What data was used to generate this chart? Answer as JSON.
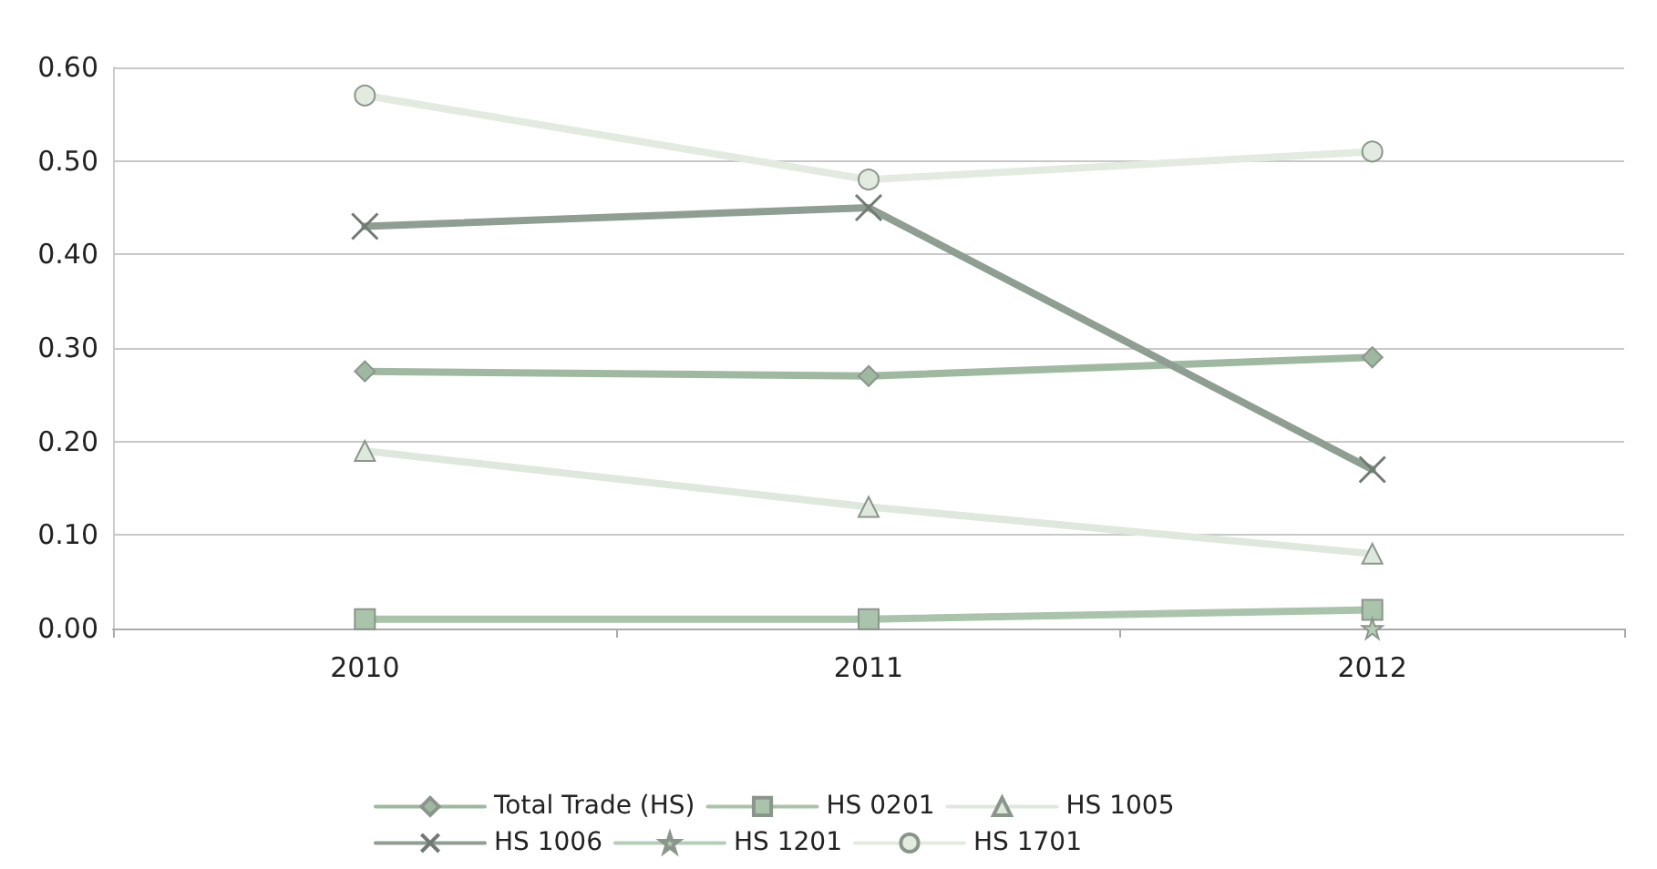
{
  "chart_data": {
    "type": "line",
    "categories": [
      "2010",
      "2011",
      "2012"
    ],
    "series": [
      {
        "name": "Total Trade (HS)",
        "color": "#9fb8a0",
        "marker": "diamond",
        "values": [
          0.275,
          0.27,
          0.29
        ]
      },
      {
        "name": "HS 0201",
        "color": "#a9c4ab",
        "marker": "square",
        "values": [
          0.01,
          0.01,
          0.02
        ]
      },
      {
        "name": "HS 1005",
        "color": "#dfe8dc",
        "marker": "triangle",
        "values": [
          0.19,
          0.13,
          0.08
        ]
      },
      {
        "name": "HS 1006",
        "color": "#8f9e92",
        "marker": "cross",
        "values": [
          0.43,
          0.45,
          0.17
        ]
      },
      {
        "name": "HS 1201",
        "color": "#b5ccb6",
        "marker": "star",
        "values": [
          null,
          null,
          0.0
        ]
      },
      {
        "name": "HS 1701",
        "color": "#e3ebe0",
        "marker": "circle",
        "values": [
          0.57,
          0.48,
          0.51
        ]
      }
    ],
    "ylim": [
      0,
      0.6
    ],
    "yticks": [
      {
        "value": 0,
        "label": "0.00"
      },
      {
        "value": 0.1,
        "label": "0.10"
      },
      {
        "value": 0.2,
        "label": "0.20"
      },
      {
        "value": 0.3,
        "label": "0.30"
      },
      {
        "value": 0.4,
        "label": "0.40"
      },
      {
        "value": 0.5,
        "label": "0.50"
      },
      {
        "value": 0.6,
        "label": "0.60"
      }
    ],
    "grid": "y",
    "legend": "bottom",
    "line_style": "solid"
  }
}
